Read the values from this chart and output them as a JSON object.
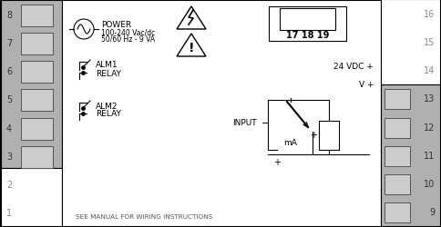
{
  "white": "#ffffff",
  "gray": "#b0b0b0",
  "light_gray": "#cccccc",
  "dark": "#333333",
  "black": "#000000",
  "mid_gray": "#888888",
  "power_text": "POWER",
  "power_sub1": "100-240 Vac/dc",
  "power_sub2": "50/60 Hz - 9 VA",
  "alm1_line1": "ALM1",
  "alm1_line2": "RELAY",
  "alm2_line1": "ALM2",
  "alm2_line2": "RELAY",
  "terminal_text": "17 18 19",
  "vdc_text": "24 VDC +",
  "vplus_text": "V +",
  "input_text": "INPUT",
  "ma_text": "mA",
  "footer_text": "SEE MANUAL FOR WIRING INSTRUCTIONS"
}
